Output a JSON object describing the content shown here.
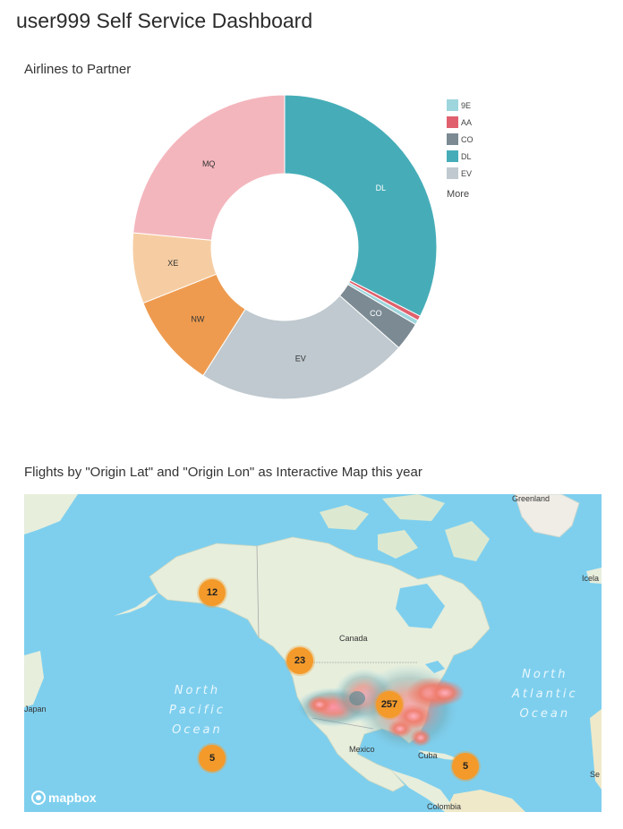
{
  "dashboard": {
    "title": "user999 Self Service Dashboard"
  },
  "pie_panel": {
    "title": "Airlines to Partner"
  },
  "chart_data": {
    "type": "pie",
    "categories": [
      "DL",
      "AA",
      "9E",
      "CO",
      "EV",
      "NW",
      "XE",
      "MQ"
    ],
    "values": [
      32.5,
      0.5,
      0.5,
      3.0,
      22.5,
      10.0,
      7.5,
      23.5
    ],
    "colors": [
      "#46adb8",
      "#e0616d",
      "#9ed6dd",
      "#7b8a93",
      "#bfc9cf",
      "#ee9b50",
      "#f6cda2",
      "#f4b6bd"
    ],
    "legend": {
      "items": [
        {
          "label": "9E",
          "color": "#9ed6dd"
        },
        {
          "label": "AA",
          "color": "#e0616d"
        },
        {
          "label": "CO",
          "color": "#7b8a93"
        },
        {
          "label": "DL",
          "color": "#46adb8"
        },
        {
          "label": "EV",
          "color": "#bfc9cf"
        }
      ],
      "more_label": "More",
      "placement": "right"
    }
  },
  "map_panel": {
    "title": "Flights by \"Origin Lat\" and \"Origin Lon\" as Interactive Map this year",
    "labels": {
      "greenland": "Greenland",
      "canada": "Canada",
      "mexico": "Mexico",
      "cuba": "Cuba",
      "colombia": "Colombia",
      "japan": "Japan",
      "iceland": "Icela",
      "se": "Se",
      "north_pacific": "North\nPacific\nOcean",
      "north_atlantic": "North\nAtlantic\nOcean"
    },
    "clusters": [
      {
        "id": "alaska",
        "count": "12"
      },
      {
        "id": "west-coast",
        "count": "23"
      },
      {
        "id": "us-center",
        "count": "257"
      },
      {
        "id": "hawaii",
        "count": "5"
      },
      {
        "id": "caribbean",
        "count": "5"
      }
    ],
    "attribution": "mapbox"
  }
}
